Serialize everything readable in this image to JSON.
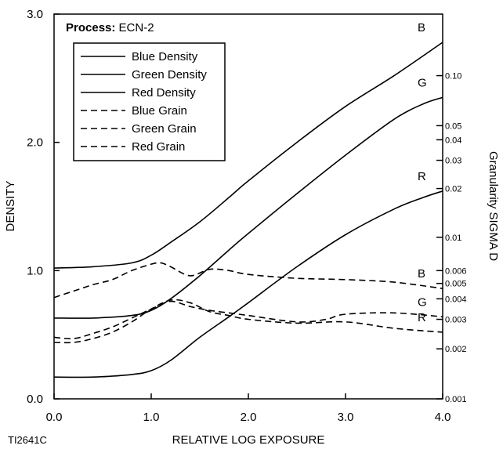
{
  "chart_data": {
    "type": "line",
    "title_label": "Process:",
    "title_value": "ECN-2",
    "xlabel": "RELATIVE LOG EXPOSURE",
    "ylabel": "DENSITY",
    "y2label": "Granularity SIGMA D",
    "figure_id": "TI2641C",
    "xlim": [
      0,
      4
    ],
    "ylim": [
      0,
      3
    ],
    "x_ticks": [
      "0.0",
      "1.0",
      "2.0",
      "3.0",
      "4.0"
    ],
    "y_ticks": [
      "0.0",
      "1.0",
      "2.0",
      "3.0"
    ],
    "y2_scale": "log",
    "y2_ticks": [
      "0.001",
      "0.002",
      "0.003",
      "0.004",
      "0.005",
      "0.006",
      "0.01",
      "0.02",
      "0.03",
      "0.04",
      "0.05",
      "0.10"
    ],
    "y2_tick_density": [
      0.0,
      0.39,
      0.62,
      0.78,
      0.9,
      1.0,
      1.26,
      1.64,
      1.86,
      2.02,
      2.13,
      2.52
    ],
    "legend": [
      "Blue Density",
      "Green Density",
      "Red Density",
      "Blue Grain",
      "Green Grain",
      "Red Grain"
    ],
    "series": [
      {
        "name": "Blue Density",
        "style": "solid",
        "end_label": "B",
        "x": [
          0,
          0.4,
          0.8,
          1.0,
          1.2,
          1.5,
          1.8,
          2.0,
          2.5,
          3.0,
          3.5,
          4.0
        ],
        "y": [
          1.02,
          1.03,
          1.06,
          1.12,
          1.22,
          1.38,
          1.57,
          1.7,
          2.0,
          2.28,
          2.52,
          2.78
        ]
      },
      {
        "name": "Green Density",
        "style": "solid",
        "end_label": "G",
        "x": [
          0,
          0.4,
          0.8,
          1.0,
          1.2,
          1.5,
          1.8,
          2.0,
          2.5,
          3.0,
          3.5,
          3.8,
          4.0
        ],
        "y": [
          0.63,
          0.63,
          0.65,
          0.69,
          0.78,
          0.96,
          1.16,
          1.29,
          1.6,
          1.9,
          2.18,
          2.3,
          2.35
        ]
      },
      {
        "name": "Red Density",
        "style": "solid",
        "end_label": "R",
        "x": [
          0,
          0.4,
          0.8,
          1.0,
          1.2,
          1.5,
          1.8,
          2.0,
          2.5,
          3.0,
          3.5,
          3.8,
          4.0
        ],
        "y": [
          0.17,
          0.17,
          0.19,
          0.22,
          0.3,
          0.48,
          0.64,
          0.75,
          1.03,
          1.28,
          1.48,
          1.57,
          1.62
        ]
      },
      {
        "name": "Blue Grain",
        "style": "dashed",
        "end_label": "B",
        "x": [
          0,
          0.2,
          0.4,
          0.6,
          0.8,
          1.0,
          1.1,
          1.2,
          1.4,
          1.6,
          1.8,
          2.0,
          2.5,
          3.0,
          3.5,
          4.0
        ],
        "y": [
          0.79,
          0.84,
          0.89,
          0.93,
          1.0,
          1.05,
          1.06,
          1.03,
          0.96,
          1.01,
          1.0,
          0.97,
          0.94,
          0.93,
          0.91,
          0.86
        ]
      },
      {
        "name": "Green Grain",
        "style": "dashed",
        "end_label": "G",
        "x": [
          0,
          0.2,
          0.4,
          0.6,
          0.8,
          1.0,
          1.2,
          1.4,
          1.6,
          1.8,
          2.0,
          2.5,
          2.8,
          3.0,
          3.5,
          4.0
        ],
        "y": [
          0.48,
          0.47,
          0.51,
          0.56,
          0.63,
          0.7,
          0.76,
          0.72,
          0.69,
          0.67,
          0.65,
          0.6,
          0.62,
          0.66,
          0.67,
          0.64
        ]
      },
      {
        "name": "Red Grain",
        "style": "dashed",
        "end_label": "R",
        "x": [
          0,
          0.2,
          0.4,
          0.6,
          0.8,
          1.0,
          1.2,
          1.4,
          1.6,
          1.8,
          2.0,
          2.5,
          3.0,
          3.5,
          4.0
        ],
        "y": [
          0.44,
          0.44,
          0.47,
          0.52,
          0.6,
          0.7,
          0.77,
          0.75,
          0.68,
          0.65,
          0.62,
          0.59,
          0.6,
          0.55,
          0.52
        ]
      }
    ]
  }
}
